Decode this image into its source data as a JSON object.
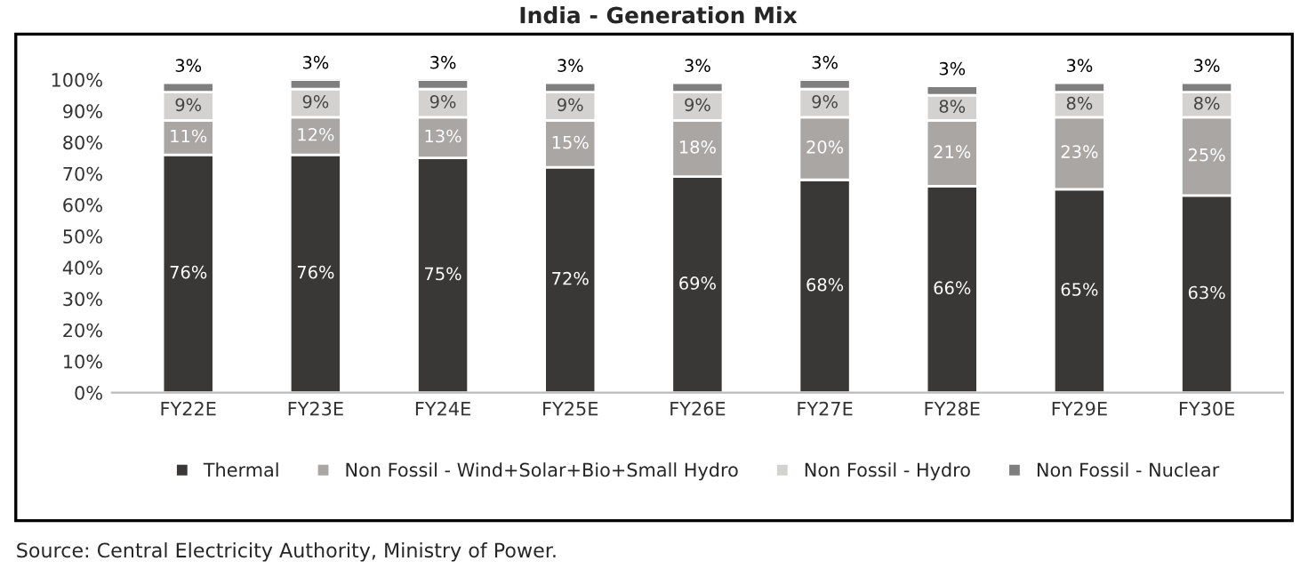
{
  "chart_data": {
    "type": "bar",
    "stacked": true,
    "title": "India - Generation Mix",
    "categories": [
      "FY22E",
      "FY23E",
      "FY24E",
      "FY25E",
      "FY26E",
      "FY27E",
      "FY28E",
      "FY29E",
      "FY30E"
    ],
    "series": [
      {
        "name": "Thermal",
        "color": "#3a3836",
        "values": [
          76,
          76,
          75,
          72,
          69,
          68,
          66,
          65,
          63
        ],
        "value_labels": [
          "76%",
          "76%",
          "75%",
          "72%",
          "69%",
          "68%",
          "66%",
          "65%",
          "63%"
        ]
      },
      {
        "name": "Non Fossil - Wind+Solar+Bio+Small Hydro",
        "color": "#aaa6a3",
        "values": [
          11,
          12,
          13,
          15,
          18,
          20,
          21,
          23,
          25
        ],
        "value_labels": [
          "11%",
          "12%",
          "13%",
          "15%",
          "18%",
          "20%",
          "21%",
          "23%",
          "25%"
        ]
      },
      {
        "name": "Non Fossil - Hydro",
        "color": "#d4d2d0",
        "values": [
          9,
          9,
          9,
          9,
          9,
          9,
          8,
          8,
          8
        ],
        "value_labels": [
          "9%",
          "9%",
          "9%",
          "9%",
          "9%",
          "9%",
          "8%",
          "8%",
          "8%"
        ]
      },
      {
        "name": "Non Fossil - Nuclear",
        "color": "#7f7f7f",
        "values": [
          3,
          3,
          3,
          3,
          3,
          3,
          3,
          3,
          3
        ],
        "value_labels": [
          "3%",
          "3%",
          "3%",
          "3%",
          "3%",
          "3%",
          "3%",
          "3%",
          "3%"
        ]
      }
    ],
    "ylim": [
      0,
      100
    ],
    "yticks": [
      {
        "value": 0,
        "label": "0%"
      },
      {
        "value": 10,
        "label": "10%"
      },
      {
        "value": 20,
        "label": "20%"
      },
      {
        "value": 30,
        "label": "30%"
      },
      {
        "value": 40,
        "label": "40%"
      },
      {
        "value": 50,
        "label": "50%"
      },
      {
        "value": 60,
        "label": "60%"
      },
      {
        "value": 70,
        "label": "70%"
      },
      {
        "value": 80,
        "label": "80%"
      },
      {
        "value": 90,
        "label": "90%"
      },
      {
        "value": 100,
        "label": "100%"
      }
    ],
    "grid": false,
    "legend": "bottom",
    "annotations": [
      "Source: Central Electricity Authority, Ministry of Power."
    ]
  }
}
